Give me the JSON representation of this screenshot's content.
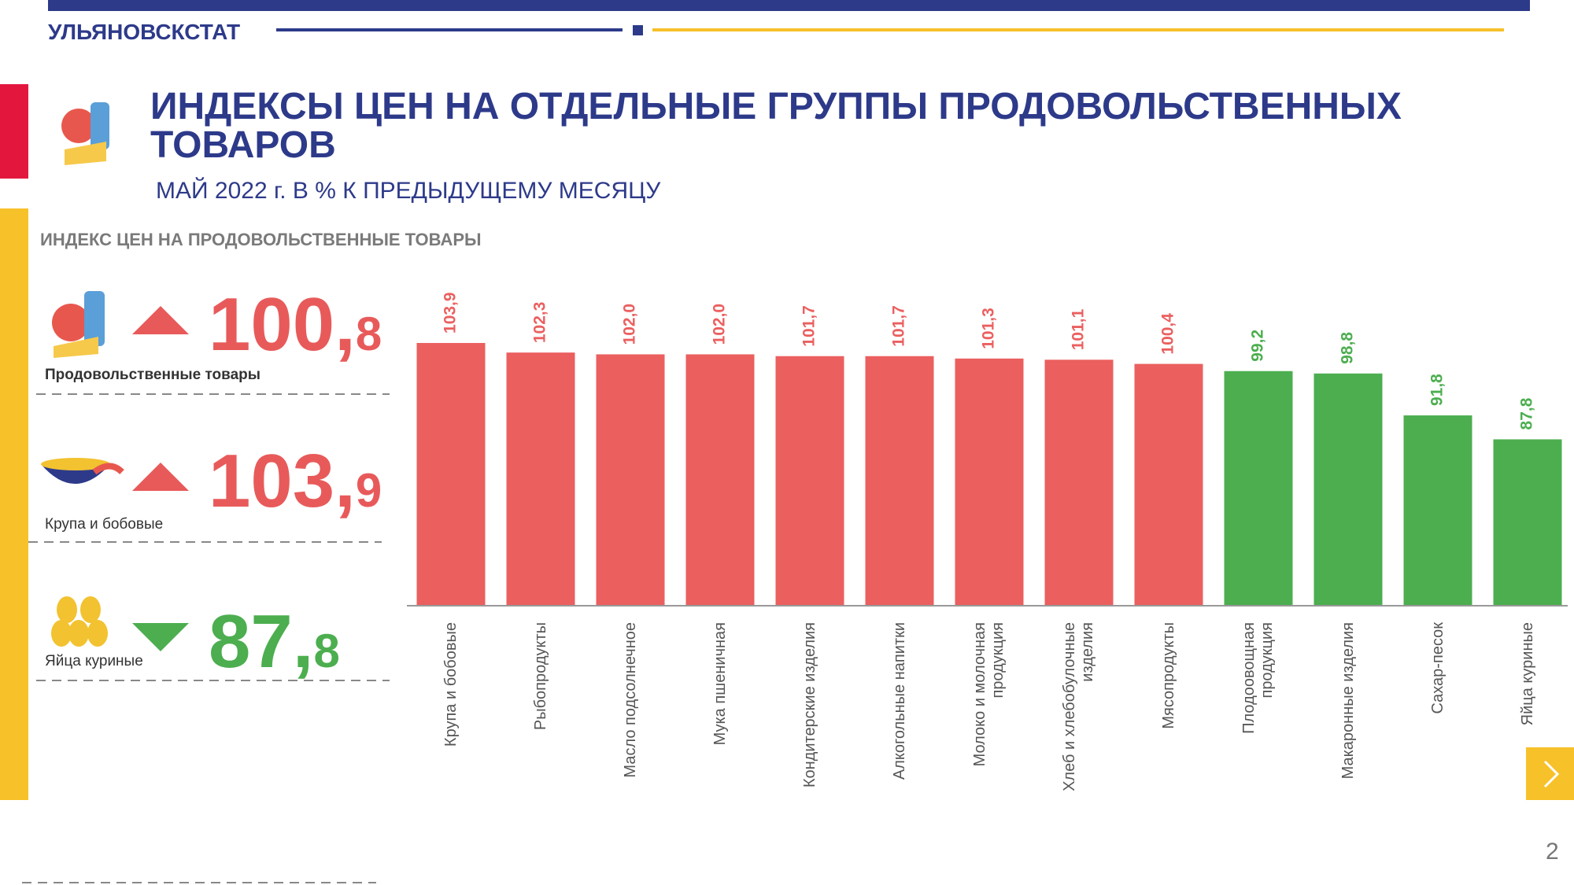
{
  "header": {
    "agency": "УЛЬЯНОВСКСТАТ",
    "title_lines": [
      "ИНДЕКСЫ ЦЕН НА ОТДЕЛЬНЫЕ ГРУППЫ ПРОДОВОЛЬСТВЕННЫХ",
      "ТОВАРОВ"
    ],
    "subtitle": "МАЙ 2022 г. В % К ПРЕДЫДУЩЕМУ МЕСЯЦУ"
  },
  "left_panel": {
    "title": "ИНДЕКС ЦЕН НА ПРОДОВОЛЬСТВЕННЫЕ ТОВАРЫ",
    "items": [
      {
        "label": "Продовольственные товары",
        "value": "100,8",
        "direction": "up"
      },
      {
        "label": "Крупа и бобовые",
        "value": "103,9",
        "direction": "up"
      },
      {
        "label": "Яйца куриные",
        "value": "87,8",
        "direction": "down"
      }
    ]
  },
  "chart_data": {
    "type": "bar",
    "categories": [
      "Крупа и бобовые",
      "Рыбопродукты",
      "Масло подсолнечное",
      "Мука пшеничная",
      "Кондитерские изделия",
      "Алкогольные напитки",
      "Молоко и молочная продукция",
      "Хлеб и хлебобулочные изделия",
      "Мясопродукты",
      "Плодоовощная продукция",
      "Макаронные изделия",
      "Сахар-песок",
      "Яйца куриные"
    ],
    "values": [
      103.9,
      102.3,
      102.0,
      102.0,
      101.7,
      101.7,
      101.3,
      101.1,
      100.4,
      99.2,
      98.8,
      91.8,
      87.8
    ],
    "value_labels": [
      "103,9",
      "102,3",
      "102,0",
      "102,0",
      "101,7",
      "101,7",
      "101,3",
      "101,1",
      "100,4",
      "99,2",
      "98,8",
      "91,8",
      "87,8"
    ],
    "colors": [
      "#eb5f5f",
      "#eb5f5f",
      "#eb5f5f",
      "#eb5f5f",
      "#eb5f5f",
      "#eb5f5f",
      "#eb5f5f",
      "#eb5f5f",
      "#eb5f5f",
      "#4cae4f",
      "#4cae4f",
      "#4cae4f",
      "#4cae4f"
    ],
    "ylim": [
      60,
      106
    ]
  },
  "page_number": "2"
}
